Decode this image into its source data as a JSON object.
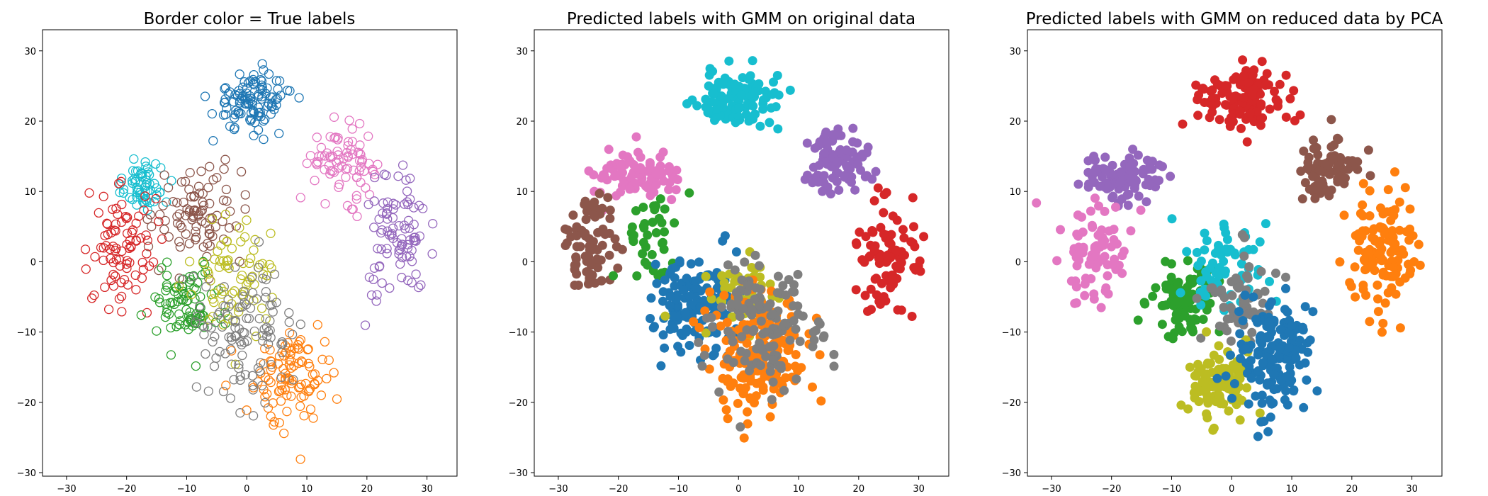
{
  "palette": [
    "#1f77b4",
    "#ff7f0e",
    "#2ca02c",
    "#d62728",
    "#9467bd",
    "#8c564b",
    "#e377c2",
    "#7f7f7f",
    "#bcbd22",
    "#17becf"
  ],
  "chart_data": [
    {
      "type": "scatter",
      "title": "Border color = True labels",
      "marker": "hollow",
      "xlim": [
        -34,
        35
      ],
      "ylim": [
        -30.5,
        33
      ],
      "xticks": [
        -30,
        -20,
        -10,
        0,
        10,
        20,
        30
      ],
      "yticks": [
        -30,
        -20,
        -10,
        0,
        10,
        20,
        30
      ],
      "grid": false,
      "clusters": [
        {
          "color": "#1f77b4",
          "center": [
            1,
            23
          ],
          "spread": [
            5.5,
            3.5
          ],
          "count": 110
        },
        {
          "color": "#e377c2",
          "center": [
            16,
            14
          ],
          "spread": [
            4.5,
            4
          ],
          "count": 80
        },
        {
          "color": "#9467bd",
          "center": [
            25,
            3
          ],
          "spread": [
            4.5,
            7
          ],
          "count": 90
        },
        {
          "color": "#17becf",
          "center": [
            -17,
            11
          ],
          "spread": [
            4,
            3
          ],
          "count": 60
        },
        {
          "color": "#8c564b",
          "center": [
            -8,
            7
          ],
          "spread": [
            6,
            6
          ],
          "count": 90
        },
        {
          "color": "#d62728",
          "center": [
            -21,
            2
          ],
          "spread": [
            4.5,
            7
          ],
          "count": 85
        },
        {
          "color": "#2ca02c",
          "center": [
            -10,
            -6
          ],
          "spread": [
            5,
            5
          ],
          "count": 85
        },
        {
          "color": "#bcbd22",
          "center": [
            -2,
            -2
          ],
          "spread": [
            6,
            7
          ],
          "count": 75
        },
        {
          "color": "#ff7f0e",
          "center": [
            8,
            -16
          ],
          "spread": [
            6,
            6
          ],
          "count": 100
        },
        {
          "color": "#7f7f7f",
          "center": [
            0,
            -10
          ],
          "spread": [
            6,
            8
          ],
          "count": 110
        }
      ]
    },
    {
      "type": "scatter",
      "title": "Predicted labels with GMM on original data",
      "marker": "filled",
      "xlim": [
        -34,
        35
      ],
      "ylim": [
        -30.5,
        33
      ],
      "xticks": [
        -30,
        -20,
        -10,
        0,
        10,
        20,
        30
      ],
      "yticks": [
        -30,
        -20,
        -10,
        0,
        10,
        20,
        30
      ],
      "grid": false,
      "clusters": [
        {
          "color": "#17becf",
          "center": [
            0,
            23
          ],
          "spread": [
            6,
            3.5
          ],
          "count": 120
        },
        {
          "color": "#9467bd",
          "center": [
            17,
            14
          ],
          "spread": [
            4,
            4
          ],
          "count": 90
        },
        {
          "color": "#d62728",
          "center": [
            25,
            1
          ],
          "spread": [
            4,
            7
          ],
          "count": 90
        },
        {
          "color": "#e377c2",
          "center": [
            -17,
            12
          ],
          "spread": [
            6,
            3
          ],
          "count": 90
        },
        {
          "color": "#8c564b",
          "center": [
            -25,
            2
          ],
          "spread": [
            4,
            6
          ],
          "count": 80
        },
        {
          "color": "#2ca02c",
          "center": [
            -14,
            4
          ],
          "spread": [
            4,
            5
          ],
          "count": 40
        },
        {
          "color": "#1f77b4",
          "center": [
            -7,
            -6
          ],
          "spread": [
            6,
            5
          ],
          "count": 150
        },
        {
          "color": "#bcbd22",
          "center": [
            1,
            -5
          ],
          "spread": [
            5,
            5
          ],
          "count": 50
        },
        {
          "color": "#ff7f0e",
          "center": [
            3,
            -13
          ],
          "spread": [
            7,
            7
          ],
          "count": 170
        },
        {
          "color": "#7f7f7f",
          "center": [
            4,
            -10
          ],
          "spread": [
            8,
            8
          ],
          "count": 130
        }
      ]
    },
    {
      "type": "scatter",
      "title": "Predicted labels with GMM on reduced data by PCA",
      "marker": "filled",
      "xlim": [
        -34,
        35
      ],
      "ylim": [
        -30.5,
        33
      ],
      "xticks": [
        -30,
        -20,
        -10,
        0,
        10,
        20,
        30
      ],
      "yticks": [
        -30,
        -20,
        -10,
        0,
        10,
        20,
        30
      ],
      "grid": false,
      "clusters": [
        {
          "color": "#d62728",
          "center": [
            1,
            23
          ],
          "spread": [
            6,
            3.5
          ],
          "count": 120
        },
        {
          "color": "#8c564b",
          "center": [
            16,
            13
          ],
          "spread": [
            4,
            4
          ],
          "count": 80
        },
        {
          "color": "#ff7f0e",
          "center": [
            25,
            1
          ],
          "spread": [
            5,
            8
          ],
          "count": 120
        },
        {
          "color": "#9467bd",
          "center": [
            -18,
            12
          ],
          "spread": [
            6,
            3
          ],
          "count": 100
        },
        {
          "color": "#e377c2",
          "center": [
            -23,
            2
          ],
          "spread": [
            5,
            6
          ],
          "count": 80
        },
        {
          "color": "#2ca02c",
          "center": [
            -8,
            -5
          ],
          "spread": [
            5,
            4
          ],
          "count": 100
        },
        {
          "color": "#17becf",
          "center": [
            -1,
            -1
          ],
          "spread": [
            6,
            6
          ],
          "count": 70
        },
        {
          "color": "#7f7f7f",
          "center": [
            2,
            -6
          ],
          "spread": [
            5,
            6
          ],
          "count": 60
        },
        {
          "color": "#bcbd22",
          "center": [
            -2,
            -17
          ],
          "spread": [
            5,
            4
          ],
          "count": 110
        },
        {
          "color": "#1f77b4",
          "center": [
            7,
            -14
          ],
          "spread": [
            6,
            7
          ],
          "count": 150
        }
      ]
    }
  ]
}
